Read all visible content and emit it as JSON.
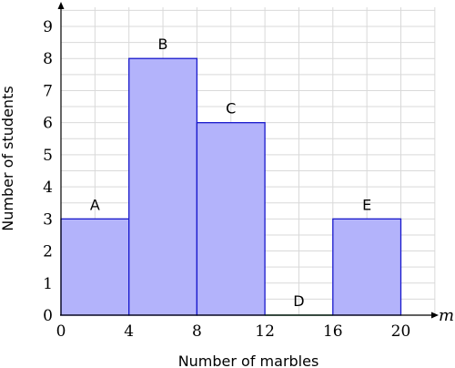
{
  "chart_data": {
    "type": "bar",
    "title": "",
    "xlabel": "Number of marbles",
    "ylabel": "Number of students",
    "x_variable": "m",
    "xlim": [
      0,
      20
    ],
    "ylim": [
      0,
      9
    ],
    "x_ticks": [
      "0",
      "4",
      "8",
      "12",
      "16",
      "20"
    ],
    "y_ticks": [
      "0",
      "1",
      "2",
      "3",
      "4",
      "5",
      "6",
      "7",
      "8",
      "9"
    ],
    "grid": true,
    "bins": [
      {
        "label": "A",
        "from": 0,
        "to": 4,
        "value": 3
      },
      {
        "label": "B",
        "from": 4,
        "to": 8,
        "value": 8
      },
      {
        "label": "C",
        "from": 8,
        "to": 12,
        "value": 6
      },
      {
        "label": "D",
        "from": 12,
        "to": 16,
        "value": 0
      },
      {
        "label": "E",
        "from": 16,
        "to": 20,
        "value": 3
      }
    ],
    "colors": {
      "bar_fill": "#b3b3fb",
      "bar_stroke": "#1a1acc",
      "zero_bar_stroke": "#2e8b57"
    }
  }
}
